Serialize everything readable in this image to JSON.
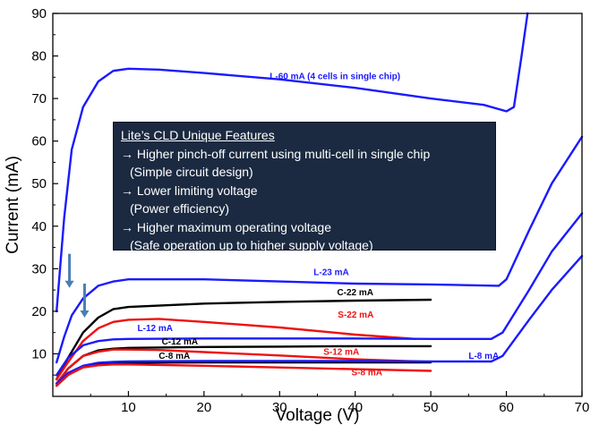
{
  "chart_data": {
    "type": "line",
    "xlabel": "Voltage (V)",
    "ylabel": "Current (mA)",
    "xlim": [
      0,
      70
    ],
    "ylim": [
      0,
      90
    ],
    "xticks": [
      "10",
      "20",
      "30",
      "40",
      "50",
      "60",
      "70"
    ],
    "yticks": [
      "10",
      "20",
      "30",
      "40",
      "50",
      "60",
      "70",
      "80",
      "90"
    ],
    "grid": false,
    "series": [
      {
        "name": "L-60 mA (4 cells in single chip)",
        "color": "#1a1aff",
        "points": [
          [
            0.5,
            20
          ],
          [
            1.5,
            42
          ],
          [
            2.5,
            58
          ],
          [
            4,
            68
          ],
          [
            6,
            74
          ],
          [
            8,
            76.5
          ],
          [
            10,
            77
          ],
          [
            14,
            76.8
          ],
          [
            20,
            76
          ],
          [
            30,
            74.5
          ],
          [
            40,
            72.5
          ],
          [
            50,
            70
          ],
          [
            57,
            68.5
          ],
          [
            60,
            67
          ],
          [
            61,
            68
          ],
          [
            62,
            80
          ],
          [
            62.8,
            90
          ]
        ]
      },
      {
        "name": "L-23 mA",
        "color": "#1a1aff",
        "points": [
          [
            0.5,
            8
          ],
          [
            1.5,
            14
          ],
          [
            2.5,
            19
          ],
          [
            4,
            23
          ],
          [
            6,
            26
          ],
          [
            8,
            27
          ],
          [
            10,
            27.5
          ],
          [
            20,
            27.5
          ],
          [
            30,
            27
          ],
          [
            40,
            26.5
          ],
          [
            50,
            26.3
          ],
          [
            59,
            26
          ],
          [
            60,
            27.5
          ],
          [
            63,
            39
          ],
          [
            66,
            50
          ],
          [
            70,
            61
          ]
        ]
      },
      {
        "name": "C-22 mA",
        "color": "#000000",
        "points": [
          [
            0.5,
            4
          ],
          [
            2,
            9
          ],
          [
            4,
            15
          ],
          [
            6,
            18.5
          ],
          [
            8,
            20.5
          ],
          [
            10,
            21
          ],
          [
            20,
            21.8
          ],
          [
            30,
            22.2
          ],
          [
            40,
            22.5
          ],
          [
            50,
            22.7
          ]
        ]
      },
      {
        "name": "S-22 mA",
        "color": "#ee1111",
        "points": [
          [
            0.5,
            4
          ],
          [
            2,
            8
          ],
          [
            4,
            13
          ],
          [
            6,
            16
          ],
          [
            8,
            17.5
          ],
          [
            10,
            18
          ],
          [
            14,
            18.2
          ],
          [
            20,
            17.5
          ],
          [
            30,
            16.2
          ],
          [
            40,
            14.5
          ],
          [
            48,
            13.5
          ]
        ]
      },
      {
        "name": "L-12 mA",
        "color": "#1a1aff",
        "points": [
          [
            0.5,
            5
          ],
          [
            2,
            9
          ],
          [
            4,
            12
          ],
          [
            6,
            13
          ],
          [
            8,
            13.4
          ],
          [
            10,
            13.5
          ],
          [
            20,
            13.6
          ],
          [
            30,
            13.6
          ],
          [
            40,
            13.6
          ],
          [
            50,
            13.5
          ],
          [
            58,
            13.5
          ],
          [
            59.5,
            15
          ],
          [
            63,
            25
          ],
          [
            66,
            34
          ],
          [
            70,
            43
          ]
        ]
      },
      {
        "name": "C-12 mA",
        "color": "#000000",
        "points": [
          [
            0.5,
            3
          ],
          [
            2,
            6.5
          ],
          [
            4,
            9.5
          ],
          [
            6,
            10.8
          ],
          [
            8,
            11.2
          ],
          [
            10,
            11.4
          ],
          [
            20,
            11.6
          ],
          [
            30,
            11.7
          ],
          [
            40,
            11.8
          ],
          [
            50,
            11.8
          ]
        ]
      },
      {
        "name": "S-12 mA",
        "color": "#ee1111",
        "points": [
          [
            0.5,
            3
          ],
          [
            2,
            6.5
          ],
          [
            4,
            9.5
          ],
          [
            6,
            10.5
          ],
          [
            8,
            11
          ],
          [
            10,
            11
          ],
          [
            14,
            10.9
          ],
          [
            20,
            10.4
          ],
          [
            30,
            9.6
          ],
          [
            40,
            8.7
          ],
          [
            50,
            8.1
          ]
        ]
      },
      {
        "name": "C-8 mA",
        "color": "#000000",
        "points": [
          [
            0.5,
            2.5
          ],
          [
            2,
            5
          ],
          [
            4,
            7
          ],
          [
            6,
            7.6
          ],
          [
            8,
            7.8
          ],
          [
            10,
            7.9
          ],
          [
            20,
            8
          ],
          [
            30,
            8
          ],
          [
            40,
            8
          ],
          [
            50,
            8
          ]
        ]
      },
      {
        "name": "L-8 mA",
        "color": "#1a1aff",
        "points": [
          [
            0.5,
            3
          ],
          [
            2,
            5.5
          ],
          [
            4,
            7.2
          ],
          [
            6,
            7.9
          ],
          [
            8,
            8.1
          ],
          [
            10,
            8.2
          ],
          [
            20,
            8.3
          ],
          [
            30,
            8.3
          ],
          [
            40,
            8.3
          ],
          [
            50,
            8.2
          ],
          [
            58,
            8.2
          ],
          [
            59.5,
            9.5
          ],
          [
            63,
            18
          ],
          [
            66,
            25
          ],
          [
            70,
            33
          ]
        ]
      },
      {
        "name": "S-8 mA",
        "color": "#ee1111",
        "points": [
          [
            0.5,
            2.5
          ],
          [
            2,
            5
          ],
          [
            4,
            6.8
          ],
          [
            6,
            7.3
          ],
          [
            8,
            7.5
          ],
          [
            10,
            7.5
          ],
          [
            20,
            7.2
          ],
          [
            30,
            6.8
          ],
          [
            40,
            6.4
          ],
          [
            50,
            6
          ]
        ]
      }
    ],
    "annotations": [
      {
        "text": "L-60 mA (4 cells in single chip)",
        "x": 28.7,
        "y": 74.5,
        "color": "#1a1aff"
      },
      {
        "text": "L-23 mA",
        "x": 34.5,
        "y": 28.5,
        "color": "#1a1aff"
      },
      {
        "text": "C-22 mA",
        "x": 37.6,
        "y": 23.8,
        "color": "#000000"
      },
      {
        "text": "S-22 mA",
        "x": 37.7,
        "y": 18.5,
        "color": "#ee1111"
      },
      {
        "text": "L-12 mA",
        "x": 11.2,
        "y": 15.3,
        "color": "#1a1aff"
      },
      {
        "text": "C-12 mA",
        "x": 14.4,
        "y": 12.2,
        "color": "#000000"
      },
      {
        "text": "S-12 mA",
        "x": 35.8,
        "y": 9.8,
        "color": "#ee1111"
      },
      {
        "text": "C-8 mA",
        "x": 14.0,
        "y": 8.8,
        "color": "#000000"
      },
      {
        "text": "L-8 mA",
        "x": 55.0,
        "y": 8.8,
        "color": "#1a1aff"
      },
      {
        "text": "S-8 mA",
        "x": 39.5,
        "y": 4.9,
        "color": "#ee1111"
      }
    ],
    "arrows": [
      {
        "x": 2.2,
        "y_from": 33.5,
        "y_to": 25.5,
        "color": "#4a7fb5"
      },
      {
        "x": 4.2,
        "y_from": 26.5,
        "y_to": 18.5,
        "color": "#4a7fb5"
      }
    ]
  },
  "feature_box": {
    "title": "Lite’s CLD Unique Features",
    "lines": [
      "→ Higher pinch-off current using multi-cell in single chip",
      "  (Simple circuit design)",
      "→ Lower limiting voltage",
      "  (Power efficiency)",
      "→ Higher maximum operating voltage",
      "  (Safe operation up to higher supply voltage)"
    ]
  }
}
